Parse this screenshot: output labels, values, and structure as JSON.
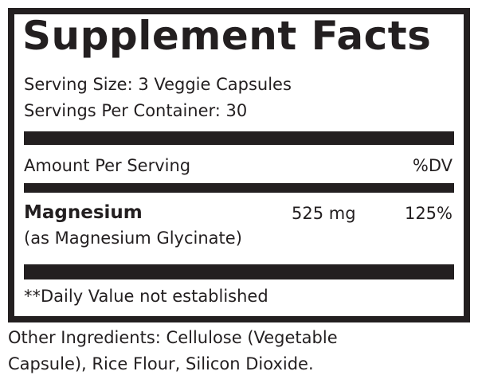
{
  "title": "Supplement Facts",
  "serving_size": "Serving Size: 3 Veggie Capsules",
  "servings_per_container": "Servings Per Container:  30",
  "amount_header": "Amount Per Serving",
  "dv_header": "%DV",
  "nutrient": {
    "name": "Magnesium",
    "source": "(as Magnesium Glycinate)",
    "amount": "525 mg",
    "dv": "125%"
  },
  "footnote": "**Daily Value not established",
  "other_ingredients": [
    "Other Ingredients: Cellulose (Vegetable",
    "Capsule), Rice Flour, Silicon Dioxide."
  ]
}
